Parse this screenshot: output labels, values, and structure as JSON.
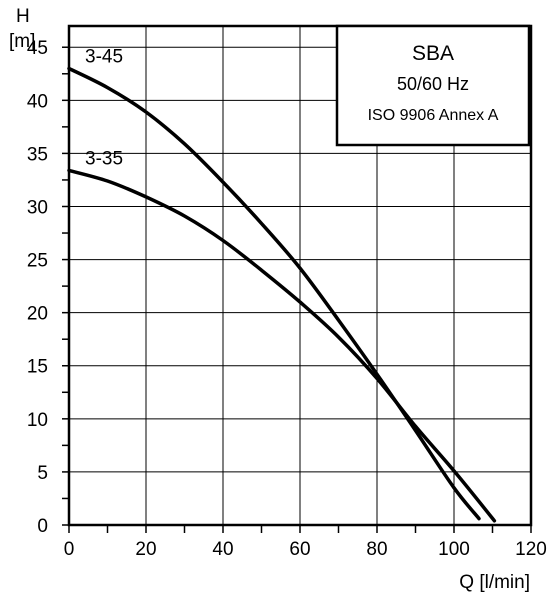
{
  "chart_data": {
    "type": "line",
    "xlabel": "Q [l/min]",
    "ylabel_line1": "H",
    "ylabel_line2": "[m]",
    "xlim": [
      0,
      120
    ],
    "ylim": [
      0,
      47
    ],
    "x_ticks": [
      0,
      20,
      40,
      60,
      80,
      100,
      120
    ],
    "y_ticks": [
      0,
      5,
      10,
      15,
      20,
      25,
      30,
      35,
      40,
      45
    ],
    "grid": true,
    "legend_placement": "top-right",
    "legend_box": {
      "title": "SBA",
      "line2": "50/60  Hz",
      "line3": "ISO 9906 Annex A"
    },
    "series": [
      {
        "name": "3-45",
        "x": [
          0,
          10,
          20,
          30,
          40,
          50,
          60,
          70,
          80,
          90,
          100,
          106.5
        ],
        "y": [
          43,
          41.2,
          38.9,
          35.9,
          32.3,
          28.4,
          24.2,
          19.3,
          14.2,
          8.9,
          3.5,
          0.6
        ]
      },
      {
        "name": "3-35",
        "x": [
          0,
          10,
          20,
          30,
          40,
          50,
          60,
          70,
          80,
          90,
          100,
          110.5
        ],
        "y": [
          33.4,
          32.4,
          30.9,
          29.1,
          26.8,
          24,
          21,
          17.7,
          13.8,
          9.3,
          5.1,
          0.4
        ]
      }
    ]
  }
}
